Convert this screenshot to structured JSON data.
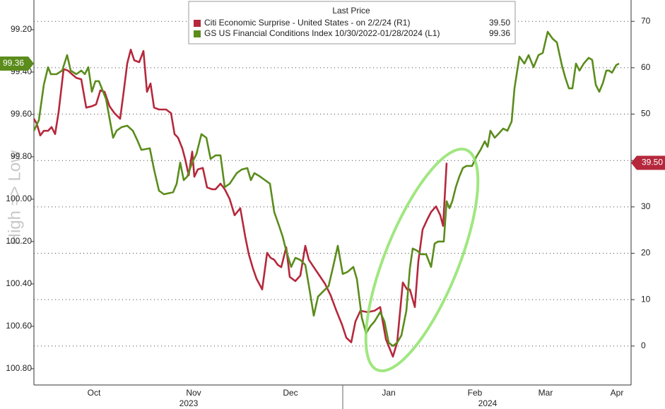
{
  "chart_data": {
    "type": "line",
    "legend_title": "Last Price",
    "ylabel": "High => Low",
    "xlim": [
      0,
      845
    ],
    "ylim": [
      100.877,
      99.06
    ],
    "y2lim": [
      -8.4,
      74.6
    ],
    "yticks": [
      {
        "value": 99.2,
        "label": "99.20"
      },
      {
        "value": 99.4,
        "label": "99.40"
      },
      {
        "value": 99.6,
        "label": "99.60"
      },
      {
        "value": 99.8,
        "label": "99.80"
      },
      {
        "value": 100.0,
        "label": "100.00"
      },
      {
        "value": 100.2,
        "label": "100.20"
      },
      {
        "value": 100.4,
        "label": "100.40"
      },
      {
        "value": 100.6,
        "label": "100.60"
      },
      {
        "value": 100.8,
        "label": "100.80"
      }
    ],
    "y2ticks": [
      0,
      10,
      20,
      30,
      40,
      50,
      60,
      70
    ],
    "xticks": [
      {
        "value": 85,
        "label": "Oct"
      },
      {
        "value": 226,
        "label": "Nov"
      },
      {
        "value": 363,
        "label": "Dec"
      },
      {
        "value": 502,
        "label": "Jan"
      },
      {
        "value": 624,
        "label": "Feb"
      },
      {
        "value": 724,
        "label": "Mar"
      },
      {
        "value": 825,
        "label": "Apr"
      }
    ],
    "year_ticks": [
      {
        "value": 219,
        "label": "2023"
      },
      {
        "value": 642,
        "label": "2024"
      }
    ],
    "grid": true,
    "series": [
      {
        "name": "Citi Economic Surprise - United States -  on 2/2/24  (R1)",
        "color": "#b5283c",
        "axis": "y2",
        "last_label": "39.50",
        "x": [
          0,
          4,
          9,
          14,
          20,
          25,
          30,
          35,
          42,
          48,
          54,
          60,
          67,
          74,
          82,
          88,
          94,
          100,
          107,
          114,
          122,
          127,
          132,
          137,
          142,
          149,
          155,
          160,
          165,
          170,
          177,
          187,
          194,
          199,
          204,
          210,
          214,
          219,
          224,
          227,
          232,
          239,
          245,
          252,
          257,
          264,
          270,
          277,
          284,
          292,
          299,
          304,
          310,
          315,
          323,
          330,
          335,
          340,
          345,
          350,
          357,
          362,
          370,
          377,
          384,
          389,
          396,
          404,
          412,
          420,
          428,
          436,
          442,
          449,
          455,
          462,
          472,
          482,
          490,
          498,
          508,
          514,
          522,
          528,
          532,
          539,
          544,
          550,
          556,
          562,
          569,
          575,
          579,
          584
        ],
        "values": [
          49.0,
          47.9,
          45.4,
          46.4,
          46.4,
          47.2,
          45.7,
          50.5,
          59.7,
          59.4,
          58.6,
          57.8,
          57.5,
          51.4,
          51.7,
          52.1,
          55.1,
          54.8,
          51.7,
          50.2,
          49.0,
          54.8,
          60.9,
          63.9,
          61.6,
          61.2,
          63.6,
          54.8,
          56.6,
          51.4,
          51.0,
          51.0,
          50.2,
          45.7,
          44.9,
          42.6,
          40.3,
          36.8,
          41.9,
          36.5,
          38.1,
          38.4,
          34.2,
          33.8,
          33.8,
          35.0,
          33.8,
          31.7,
          28.2,
          29.7,
          23.6,
          19.8,
          16.7,
          14.5,
          12.2,
          20.1,
          19.0,
          18.6,
          17.5,
          17.0,
          21.3,
          14.9,
          14.0,
          15.2,
          21.6,
          18.6,
          17.0,
          15.2,
          13.4,
          10.9,
          7.6,
          4.6,
          1.8,
          0.8,
          5.3,
          7.6,
          7.3,
          7.6,
          8.4,
          1.5,
          -2.3,
          0.8,
          13.7,
          12.2,
          12.2,
          8.4,
          18.3,
          25.1,
          27.1,
          28.9,
          30.1,
          28.2,
          25.9,
          39.5
        ]
      },
      {
        "name": "GS US Financial Conditions Index 10/30/2022-01/28/2024  (L1)",
        "color": "#5b8c1c",
        "axis": "y",
        "last_label": "99.36",
        "x": [
          0,
          7,
          14,
          20,
          24,
          32,
          40,
          47,
          52,
          60,
          67,
          72,
          77,
          82,
          87,
          92,
          102,
          112,
          117,
          124,
          132,
          140,
          147,
          152,
          164,
          170,
          177,
          184,
          197,
          202,
          207,
          212,
          217,
          224,
          230,
          237,
          244,
          250,
          257,
          264,
          270,
          277,
          287,
          294,
          302,
          307,
          312,
          320,
          327,
          334,
          340,
          347,
          352,
          357,
          364,
          370,
          377,
          384,
          390,
          396,
          402,
          410,
          417,
          424,
          430,
          437,
          444,
          452,
          457,
          464,
          470,
          476,
          482,
          490,
          496,
          502,
          508,
          514,
          520,
          527,
          532,
          536,
          542,
          548,
          555,
          562,
          567,
          572,
          580,
          584,
          588,
          592,
          597,
          602,
          607,
          612,
          620,
          626,
          632,
          638,
          642,
          646,
          652,
          657,
          664,
          670,
          676,
          680,
          687,
          694,
          700,
          707,
          714,
          720,
          727,
          734,
          740,
          747,
          752,
          757,
          762,
          767,
          772,
          778,
          785,
          790,
          795,
          800,
          805,
          810,
          814,
          818,
          824,
          828
        ],
        "values": [
          99.677,
          99.627,
          99.46,
          99.377,
          99.41,
          99.41,
          99.393,
          99.32,
          99.393,
          99.41,
          99.393,
          99.41,
          99.377,
          99.493,
          99.443,
          99.443,
          99.527,
          99.71,
          99.677,
          99.66,
          99.653,
          99.677,
          99.727,
          99.767,
          99.76,
          99.86,
          99.96,
          99.977,
          99.967,
          99.927,
          99.827,
          99.91,
          99.893,
          99.827,
          99.787,
          99.693,
          99.71,
          99.81,
          99.793,
          99.793,
          99.943,
          99.927,
          99.877,
          99.86,
          99.853,
          99.91,
          99.877,
          99.893,
          99.91,
          99.927,
          100.06,
          100.127,
          100.177,
          100.243,
          100.32,
          100.277,
          100.287,
          100.31,
          100.427,
          100.55,
          100.46,
          100.433,
          100.41,
          100.31,
          100.22,
          100.353,
          100.343,
          100.32,
          100.377,
          100.56,
          100.633,
          100.6,
          100.577,
          100.533,
          100.577,
          100.677,
          100.693,
          100.677,
          100.643,
          100.527,
          100.327,
          100.233,
          100.243,
          100.26,
          100.26,
          100.32,
          100.21,
          100.2,
          100.2,
          100.01,
          100.043,
          100.01,
          99.943,
          99.893,
          99.853,
          99.843,
          99.843,
          99.8,
          99.767,
          99.727,
          99.753,
          99.677,
          99.71,
          99.693,
          99.667,
          99.677,
          99.633,
          99.477,
          99.327,
          99.36,
          99.32,
          99.377,
          99.32,
          99.31,
          99.21,
          99.243,
          99.26,
          99.367,
          99.427,
          99.477,
          99.477,
          99.36,
          99.393,
          99.36,
          99.333,
          99.343,
          99.46,
          99.493,
          99.453,
          99.393,
          99.393,
          99.403,
          99.367,
          99.36
        ]
      }
    ]
  }
}
